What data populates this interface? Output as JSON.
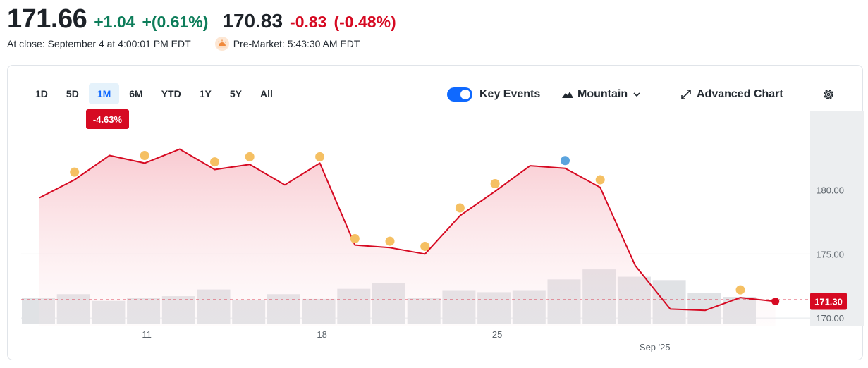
{
  "quote": {
    "close_price": "171.66",
    "close_change": "+1.04",
    "close_change_pct": "+(0.61%)",
    "close_label": "At close: September 4 at 4:00:01 PM EDT",
    "premarket_price": "170.83",
    "premarket_change": "-0.83",
    "premarket_change_pct": "(-0.48%)",
    "premarket_label": "Pre-Market: 5:43:30 AM EDT"
  },
  "ranges": [
    "1D",
    "5D",
    "1M",
    "6M",
    "YTD",
    "1Y",
    "5Y",
    "All"
  ],
  "active_range": "1M",
  "period_change": "-4.63%",
  "controls": {
    "key_events": "Key Events",
    "mountain": "Mountain",
    "advanced_chart": "Advanced Chart"
  },
  "colors": {
    "line": "#d60a22",
    "volume": "#e0e2e5",
    "event_dot": "#f5c063",
    "event_dot_alt": "#5ba4de",
    "up": "#0d7d5a",
    "down": "#d60a22"
  },
  "chart_data": {
    "type": "area",
    "series": [
      {
        "values": [
          179.4,
          180.8,
          182.7,
          182.1,
          183.2,
          181.6,
          182.0,
          180.4,
          182.1,
          175.7,
          175.5,
          175.0,
          178.0,
          179.9,
          181.9,
          181.7,
          180.2,
          174.1,
          170.7,
          170.6,
          171.6,
          171.3
        ]
      }
    ],
    "volume": [
      0.4,
      0.45,
      0.35,
      0.4,
      0.42,
      0.52,
      0.37,
      0.45,
      0.38,
      0.53,
      0.62,
      0.4,
      0.5,
      0.48,
      0.5,
      0.67,
      0.82,
      0.71,
      0.66,
      0.47,
      0.41
    ],
    "events": [
      {
        "index": 1,
        "value": 181.4,
        "kind": "primary"
      },
      {
        "index": 3,
        "value": 182.7,
        "kind": "primary"
      },
      {
        "index": 5,
        "value": 182.2,
        "kind": "primary"
      },
      {
        "index": 6,
        "value": 182.6,
        "kind": "primary"
      },
      {
        "index": 8,
        "value": 182.6,
        "kind": "primary"
      },
      {
        "index": 9,
        "value": 176.2,
        "kind": "primary"
      },
      {
        "index": 10,
        "value": 176.0,
        "kind": "primary"
      },
      {
        "index": 11,
        "value": 175.6,
        "kind": "primary"
      },
      {
        "index": 12,
        "value": 178.6,
        "kind": "primary"
      },
      {
        "index": 13,
        "value": 180.5,
        "kind": "primary"
      },
      {
        "index": 15,
        "value": 182.3,
        "kind": "secondary"
      },
      {
        "index": 16,
        "value": 180.8,
        "kind": "primary"
      },
      {
        "index": 20,
        "value": 172.2,
        "kind": "primary"
      }
    ],
    "y_ticks": [
      "180.00",
      "175.00",
      "170.00"
    ],
    "y_tick_values": [
      180,
      175,
      170
    ],
    "ylim": [
      169.4,
      186.2
    ],
    "x_ticks": [
      {
        "label": "11",
        "index": 3
      },
      {
        "label": "18",
        "index": 8
      },
      {
        "label": "25",
        "index": 13
      },
      {
        "label": "Sep '25",
        "index": 17.5
      }
    ],
    "reference_value": 171.43,
    "last_label": "171.30",
    "grid": true,
    "xlabel": "",
    "ylabel": ""
  }
}
